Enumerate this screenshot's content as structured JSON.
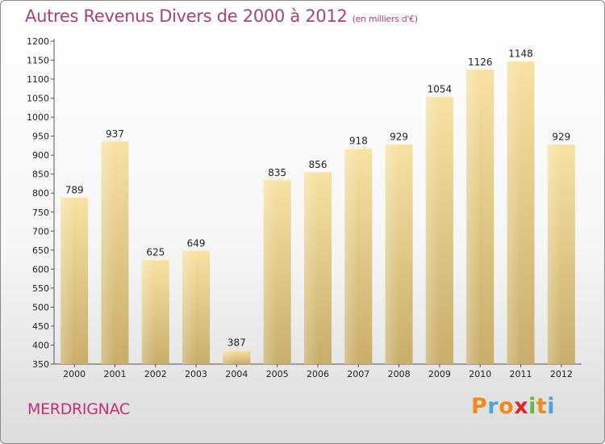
{
  "header": {
    "title": "Autres Revenus Divers de 2000 à 2012",
    "unit": "(en milliers d'€)"
  },
  "footer": {
    "commune": "MERDRIGNAC",
    "brand_letters": [
      "P",
      "r",
      "o",
      "x",
      "i",
      "t",
      "i"
    ]
  },
  "colors": {
    "title": "#a8427a",
    "commune": "#c0307a",
    "bar_light": "#f7e2a3",
    "bar_dark": "#c9ad6a",
    "brand": [
      "#f08a1c",
      "#4aa3df",
      "#f08a1c",
      "#e2262b",
      "#69b845",
      "#f08a1c",
      "#4aa3df"
    ]
  },
  "chart_data": {
    "type": "bar",
    "categories": [
      "2000",
      "2001",
      "2002",
      "2003",
      "2004",
      "2005",
      "2006",
      "2007",
      "2008",
      "2009",
      "2010",
      "2011",
      "2012"
    ],
    "values": [
      789,
      937,
      625,
      649,
      387,
      835,
      856,
      918,
      929,
      1054,
      1126,
      1148,
      929
    ],
    "ylim": [
      350,
      1200
    ],
    "yticks": [
      350,
      400,
      450,
      500,
      550,
      600,
      650,
      700,
      750,
      800,
      850,
      900,
      950,
      1000,
      1050,
      1100,
      1150,
      1200
    ],
    "grid": false,
    "legend": "none"
  }
}
